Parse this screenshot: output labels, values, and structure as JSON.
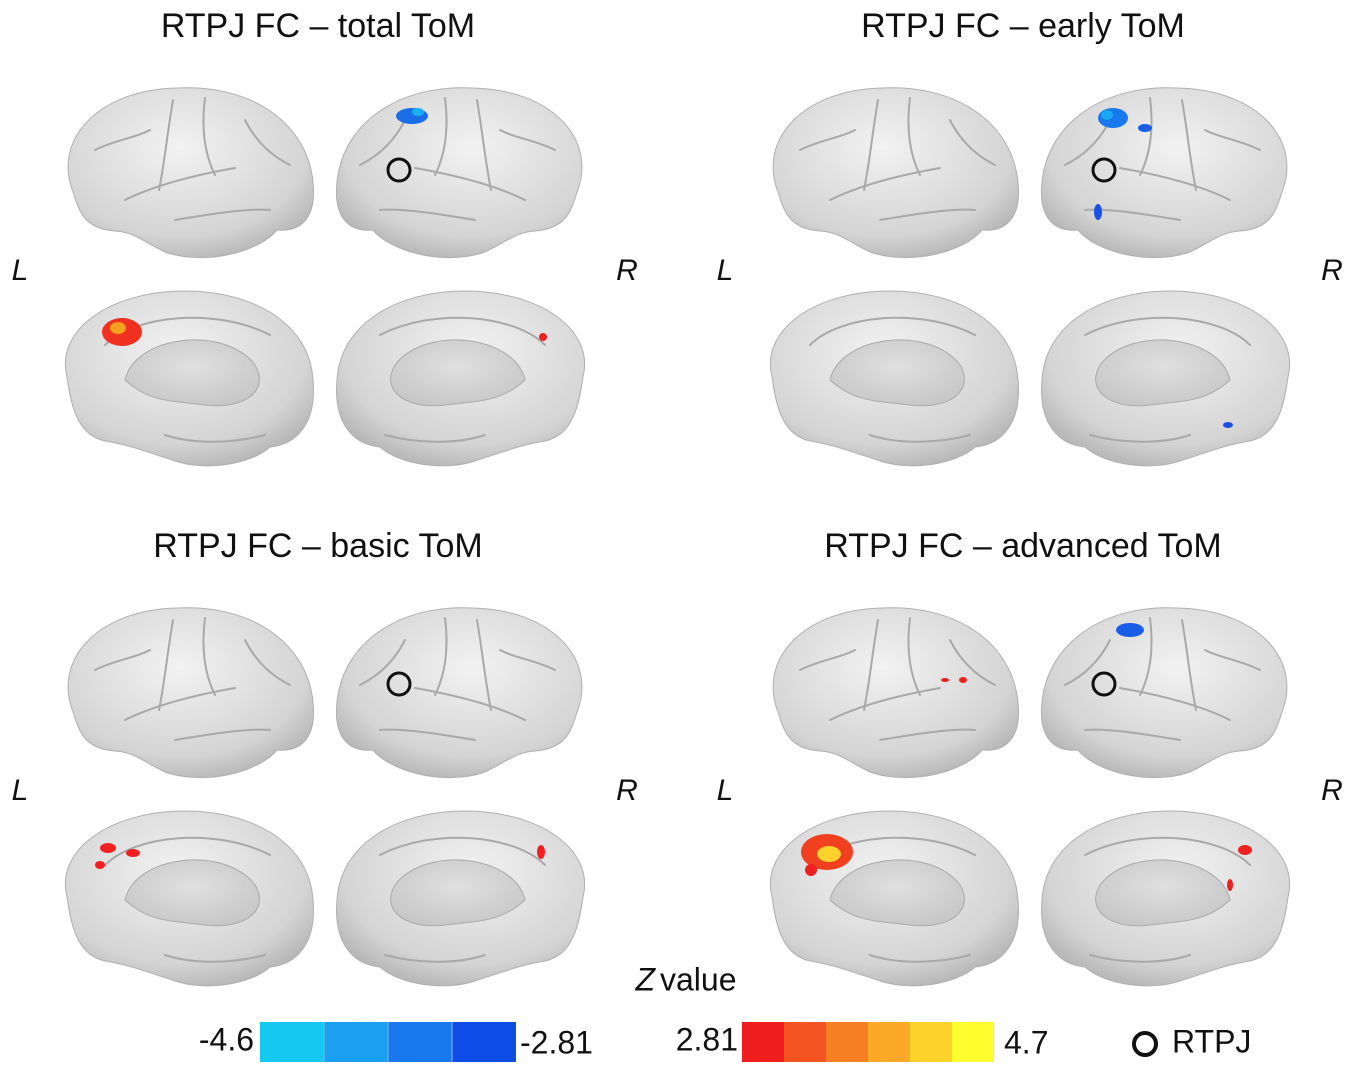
{
  "panels": [
    {
      "title": "RTPJ FC – total ToM",
      "left_label": "L",
      "right_label": "R"
    },
    {
      "title": "RTPJ FC – early ToM",
      "left_label": "L",
      "right_label": "R"
    },
    {
      "title": "RTPJ FC – basic ToM",
      "left_label": "L",
      "right_label": "R"
    },
    {
      "title": "RTPJ FC – advanced ToM",
      "left_label": "L",
      "right_label": "R"
    }
  ],
  "legend": {
    "axis_label_italic": "Z",
    "axis_label": "value",
    "negative_min": "-4.6",
    "negative_max": "-2.81",
    "positive_min": "2.81",
    "positive_max": "4.7",
    "marker_label": "RTPJ"
  }
}
